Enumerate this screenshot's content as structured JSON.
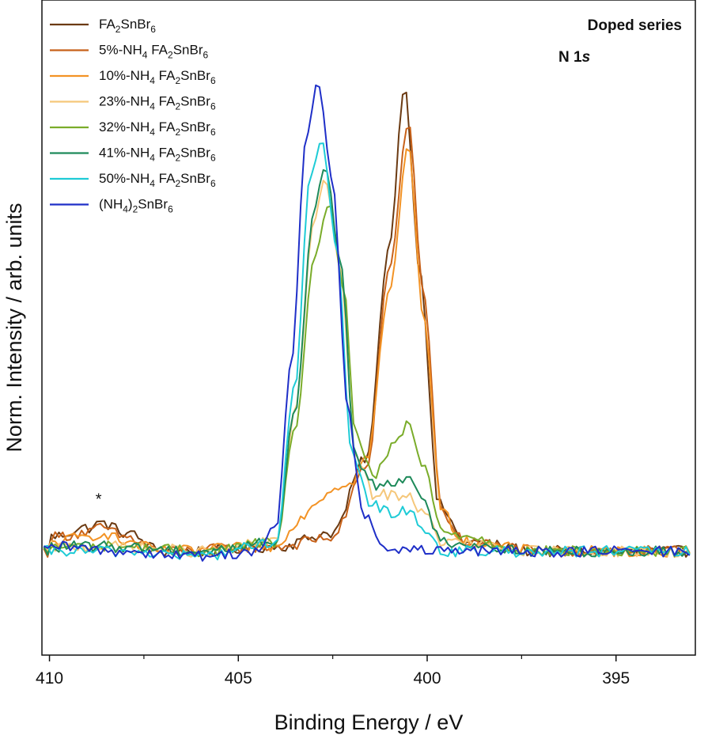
{
  "chart_data": {
    "type": "line",
    "xlabel": "Binding Energy / eV",
    "ylabel": "Norm. Intensity / arb. units",
    "xlim": [
      410.2,
      392.9
    ],
    "ylim": [
      -0.22,
      1.17
    ],
    "x_reversed": true,
    "x_ticks": [
      410,
      405,
      400,
      395
    ],
    "y_ticks_shown": false,
    "grid": false,
    "legend_position": "top-left",
    "annotations": [
      {
        "text": "Doped series",
        "position": "top-right"
      },
      {
        "text": "N 1s",
        "italic_part": "s",
        "position": "top-right"
      },
      {
        "text": "*",
        "x": 408.7,
        "y": 0.08
      }
    ],
    "series": [
      {
        "name": "FA2SnBr6",
        "color": "#6b3a12",
        "peaks": [
          {
            "center": 400.6,
            "height": 0.99,
            "width": 0.55
          },
          {
            "center": 408.6,
            "height": 0.045,
            "width": 0.8
          }
        ],
        "points": [
          [
            410,
            0.03
          ],
          [
            409,
            0.05
          ],
          [
            408.6,
            0.06
          ],
          [
            408,
            0.04
          ],
          [
            407,
            0.0
          ],
          [
            406,
            0.0
          ],
          [
            404,
            0.01
          ],
          [
            402.5,
            0.04
          ],
          [
            401.6,
            0.2
          ],
          [
            401.0,
            0.65
          ],
          [
            400.6,
            0.99
          ],
          [
            400.2,
            0.6
          ],
          [
            399.7,
            0.1
          ],
          [
            399,
            0.02
          ],
          [
            397,
            0.0
          ],
          [
            393,
            0.0
          ]
        ]
      },
      {
        "name": "5%-NH4 FA2SnBr6",
        "color": "#c8621a",
        "peaks": [
          {
            "center": 400.5,
            "height": 0.91,
            "width": 0.55
          },
          {
            "center": 408.6,
            "height": 0.04,
            "width": 0.8
          }
        ],
        "points": [
          [
            410,
            0.03
          ],
          [
            409,
            0.04
          ],
          [
            408.6,
            0.05
          ],
          [
            408,
            0.03
          ],
          [
            407,
            0.0
          ],
          [
            404,
            0.01
          ],
          [
            402.5,
            0.03
          ],
          [
            401.6,
            0.18
          ],
          [
            401.0,
            0.6
          ],
          [
            400.5,
            0.91
          ],
          [
            400.1,
            0.55
          ],
          [
            399.6,
            0.08
          ],
          [
            399,
            0.02
          ],
          [
            397,
            0.0
          ],
          [
            393,
            0.0
          ]
        ]
      },
      {
        "name": "10%-NH4 FA2SnBr6",
        "color": "#f39325",
        "peaks": [
          {
            "center": 400.5,
            "height": 0.86,
            "width": 0.55
          },
          {
            "center": 402.6,
            "height": 0.13,
            "width": 0.6
          }
        ],
        "points": [
          [
            410,
            0.02
          ],
          [
            409,
            0.03
          ],
          [
            408.6,
            0.04
          ],
          [
            408,
            0.02
          ],
          [
            407,
            0.0
          ],
          [
            404,
            0.01
          ],
          [
            403.5,
            0.06
          ],
          [
            403,
            0.1
          ],
          [
            402.6,
            0.13
          ],
          [
            402,
            0.15
          ],
          [
            401.6,
            0.2
          ],
          [
            401.0,
            0.55
          ],
          [
            400.5,
            0.86
          ],
          [
            400.1,
            0.5
          ],
          [
            399.6,
            0.08
          ],
          [
            399,
            0.02
          ],
          [
            397,
            0.0
          ],
          [
            393,
            0.0
          ]
        ]
      },
      {
        "name": "23%-NH4 FA2SnBr6",
        "color": "#f5c77a",
        "peaks": [
          {
            "center": 402.7,
            "height": 0.79,
            "width": 0.5
          },
          {
            "center": 400.5,
            "height": 0.12,
            "width": 0.55
          }
        ],
        "points": [
          [
            410,
            0.01
          ],
          [
            408,
            0.01
          ],
          [
            406,
            0.0
          ],
          [
            404,
            0.02
          ],
          [
            403.5,
            0.3
          ],
          [
            403.0,
            0.7
          ],
          [
            402.7,
            0.79
          ],
          [
            402.3,
            0.6
          ],
          [
            401.9,
            0.2
          ],
          [
            401.4,
            0.12
          ],
          [
            400.9,
            0.12
          ],
          [
            400.5,
            0.12
          ],
          [
            400.1,
            0.08
          ],
          [
            399.6,
            0.02
          ],
          [
            397,
            0.0
          ],
          [
            393,
            0.0
          ]
        ]
      },
      {
        "name": "32%-NH4 FA2SnBr6",
        "color": "#7aac2a",
        "peaks": [
          {
            "center": 402.6,
            "height": 0.74,
            "width": 0.5
          },
          {
            "center": 400.5,
            "height": 0.27,
            "width": 0.55
          }
        ],
        "points": [
          [
            410,
            0.01
          ],
          [
            408,
            0.01
          ],
          [
            406,
            0.0
          ],
          [
            404,
            0.02
          ],
          [
            403.5,
            0.25
          ],
          [
            403.0,
            0.62
          ],
          [
            402.6,
            0.74
          ],
          [
            402.2,
            0.55
          ],
          [
            401.9,
            0.25
          ],
          [
            401.4,
            0.16
          ],
          [
            400.9,
            0.22
          ],
          [
            400.5,
            0.27
          ],
          [
            400.1,
            0.18
          ],
          [
            399.6,
            0.04
          ],
          [
            397,
            0.0
          ],
          [
            393,
            0.0
          ]
        ]
      },
      {
        "name": "41%-NH4 FA2SnBr6",
        "color": "#1e8a5a",
        "peaks": [
          {
            "center": 402.7,
            "height": 0.82,
            "width": 0.5
          },
          {
            "center": 400.5,
            "height": 0.16,
            "width": 0.55
          }
        ],
        "points": [
          [
            410,
            0.01
          ],
          [
            408,
            0.01
          ],
          [
            406,
            0.0
          ],
          [
            404,
            0.02
          ],
          [
            403.5,
            0.3
          ],
          [
            403.0,
            0.72
          ],
          [
            402.7,
            0.82
          ],
          [
            402.3,
            0.62
          ],
          [
            401.9,
            0.2
          ],
          [
            401.4,
            0.14
          ],
          [
            400.9,
            0.15
          ],
          [
            400.5,
            0.16
          ],
          [
            400.1,
            0.1
          ],
          [
            399.6,
            0.02
          ],
          [
            397,
            0.0
          ],
          [
            393,
            0.0
          ]
        ]
      },
      {
        "name": "50%-NH4 FA2SnBr6",
        "color": "#1ecbd6",
        "peaks": [
          {
            "center": 402.8,
            "height": 0.87,
            "width": 0.45
          },
          {
            "center": 400.5,
            "height": 0.09,
            "width": 0.55
          }
        ],
        "points": [
          [
            410,
            0.0
          ],
          [
            408,
            0.0
          ],
          [
            406,
            -0.01
          ],
          [
            404,
            0.02
          ],
          [
            403.5,
            0.35
          ],
          [
            403.1,
            0.8
          ],
          [
            402.8,
            0.87
          ],
          [
            402.4,
            0.65
          ],
          [
            402.0,
            0.2
          ],
          [
            401.5,
            0.1
          ],
          [
            400.9,
            0.08
          ],
          [
            400.5,
            0.09
          ],
          [
            400.1,
            0.05
          ],
          [
            399.6,
            0.0
          ],
          [
            397,
            0.0
          ],
          [
            393,
            0.0
          ]
        ]
      },
      {
        "name": "(NH4)2SnBr6",
        "color": "#1f2fc8",
        "peaks": [
          {
            "center": 402.9,
            "height": 1.0,
            "width": 0.45
          }
        ],
        "points": [
          [
            410,
            0.01
          ],
          [
            408,
            0.0
          ],
          [
            406,
            -0.01
          ],
          [
            404.5,
            0.0
          ],
          [
            404,
            0.05
          ],
          [
            403.6,
            0.4
          ],
          [
            403.2,
            0.88
          ],
          [
            402.9,
            1.0
          ],
          [
            402.5,
            0.78
          ],
          [
            402.1,
            0.3
          ],
          [
            401.7,
            0.08
          ],
          [
            401.2,
            0.01
          ],
          [
            400,
            0.0
          ],
          [
            397,
            0.0
          ],
          [
            393,
            0.0
          ]
        ]
      }
    ]
  },
  "legend_items": [
    {
      "parts": [
        [
          "FA",
          ""
        ],
        [
          "2",
          "sub"
        ],
        [
          "SnBr",
          ""
        ],
        [
          "6",
          "sub"
        ]
      ]
    },
    {
      "parts": [
        [
          "5%-NH",
          ""
        ],
        [
          "4",
          "sub"
        ],
        [
          " FA",
          ""
        ],
        [
          "2",
          "sub"
        ],
        [
          "SnBr",
          ""
        ],
        [
          "6",
          "sub"
        ]
      ]
    },
    {
      "parts": [
        [
          "10%-NH",
          ""
        ],
        [
          "4",
          "sub"
        ],
        [
          " FA",
          ""
        ],
        [
          "2",
          "sub"
        ],
        [
          "SnBr",
          ""
        ],
        [
          "6",
          "sub"
        ]
      ]
    },
    {
      "parts": [
        [
          "23%-NH",
          ""
        ],
        [
          "4",
          "sub"
        ],
        [
          " FA",
          ""
        ],
        [
          "2",
          "sub"
        ],
        [
          "SnBr",
          ""
        ],
        [
          "6",
          "sub"
        ]
      ]
    },
    {
      "parts": [
        [
          "32%-NH",
          ""
        ],
        [
          "4",
          "sub"
        ],
        [
          " FA",
          ""
        ],
        [
          "2",
          "sub"
        ],
        [
          "SnBr",
          ""
        ],
        [
          "6",
          "sub"
        ]
      ]
    },
    {
      "parts": [
        [
          "41%-NH",
          ""
        ],
        [
          "4",
          "sub"
        ],
        [
          " FA",
          ""
        ],
        [
          "2",
          "sub"
        ],
        [
          "SnBr",
          ""
        ],
        [
          "6",
          "sub"
        ]
      ]
    },
    {
      "parts": [
        [
          "50%-NH",
          ""
        ],
        [
          "4",
          "sub"
        ],
        [
          " FA",
          ""
        ],
        [
          "2",
          "sub"
        ],
        [
          "SnBr",
          ""
        ],
        [
          "6",
          "sub"
        ]
      ]
    },
    {
      "parts": [
        [
          "(NH",
          ""
        ],
        [
          "4",
          "sub"
        ],
        [
          ")",
          ""
        ],
        [
          "2",
          "sub"
        ],
        [
          "SnBr",
          ""
        ],
        [
          "6",
          "sub"
        ]
      ]
    }
  ],
  "corner_labels": {
    "line1": "Doped series",
    "line2_main": "N 1",
    "line2_italic": "s"
  },
  "peak_marker": "*"
}
